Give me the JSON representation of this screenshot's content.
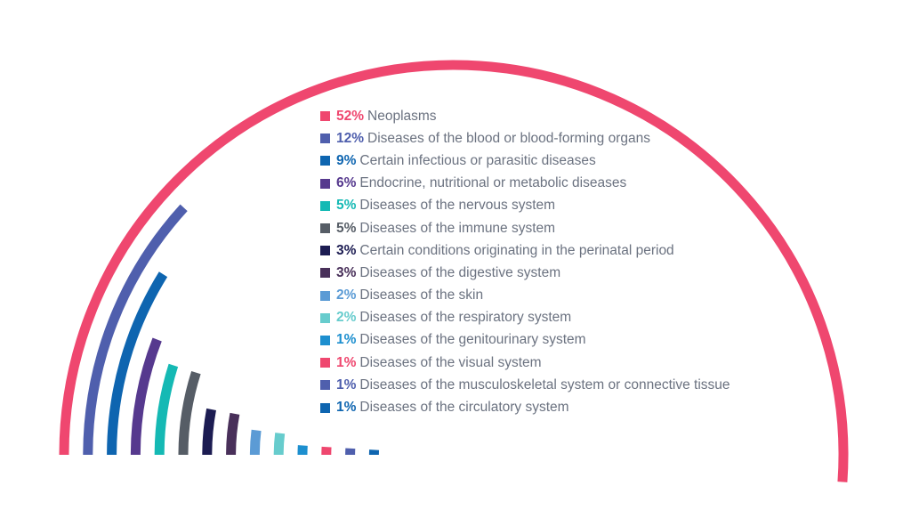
{
  "chart_data": {
    "type": "radial-bar",
    "unit": "%",
    "series": [
      {
        "pct_label": "52%",
        "value": 52,
        "label": "Neoplasms",
        "color": "#ef476f"
      },
      {
        "pct_label": "12%",
        "value": 12,
        "label": "Diseases of the blood or blood-forming organs",
        "color": "#4f5fad"
      },
      {
        "pct_label": "9%",
        "value": 9,
        "label": "Certain infectious or parasitic diseases",
        "color": "#0e65b0"
      },
      {
        "pct_label": "6%",
        "value": 6,
        "label": "Endocrine, nutritional or metabolic diseases",
        "color": "#56398e"
      },
      {
        "pct_label": "5%",
        "value": 5,
        "label": "Diseases of the nervous system",
        "color": "#15b9b4"
      },
      {
        "pct_label": "5%",
        "value": 5,
        "label": "Diseases of the immune system",
        "color": "#565d66"
      },
      {
        "pct_label": "3%",
        "value": 3,
        "label": "Certain conditions originating in the perinatal period",
        "color": "#1c1c52"
      },
      {
        "pct_label": "3%",
        "value": 3,
        "label": "Diseases of the digestive system",
        "color": "#49305a"
      },
      {
        "pct_label": "2%",
        "value": 2,
        "label": "Diseases of the skin",
        "color": "#5b9bd5"
      },
      {
        "pct_label": "2%",
        "value": 2,
        "label": "Diseases of the respiratory system",
        "color": "#67cccd"
      },
      {
        "pct_label": "1%",
        "value": 1,
        "label": "Diseases of the genitourinary system",
        "color": "#1d8fcf"
      },
      {
        "pct_label": "1%",
        "value": 1,
        "label": "Diseases of the visual system",
        "color": "#ef476f"
      },
      {
        "pct_label": "1%",
        "value": 1,
        "label": "Diseases of the musculoskeletal system or connective tissue",
        "color": "#4f5fad"
      },
      {
        "pct_label": "1%",
        "value": 1,
        "label": "Diseases of the circulatory system",
        "color": "#0e65b0"
      }
    ]
  }
}
